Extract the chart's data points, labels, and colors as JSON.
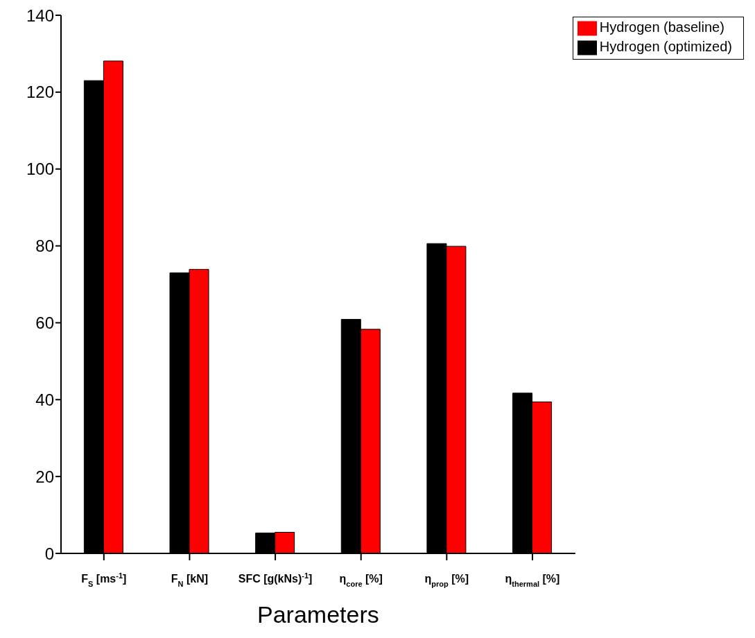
{
  "chart_data": {
    "type": "bar",
    "xlabel": "Parameters",
    "categories": [
      "F$_{S}$ [ms$^{-1}$]",
      "F$_{N}$ [kN]",
      "SFC [g(kNs)$^{-1}$]",
      "η$_{core}$ [%]",
      "η$_{prop}$ [%]",
      "η$_{thermal}$ [%]"
    ],
    "series": [
      {
        "name": "Hydrogen (optimized)",
        "color": "#000000",
        "values": [
          123.0,
          73.0,
          5.3,
          60.9,
          80.6,
          41.7
        ]
      },
      {
        "name": "Hydrogen (baseline)",
        "color": "#ff0000",
        "values": [
          128.1,
          73.9,
          5.5,
          58.3,
          79.9,
          39.4
        ]
      }
    ],
    "ylim": [
      0,
      140
    ],
    "yticks": [
      0,
      20,
      40,
      60,
      80,
      100,
      120,
      140
    ],
    "grid": false,
    "legend": "top right"
  }
}
